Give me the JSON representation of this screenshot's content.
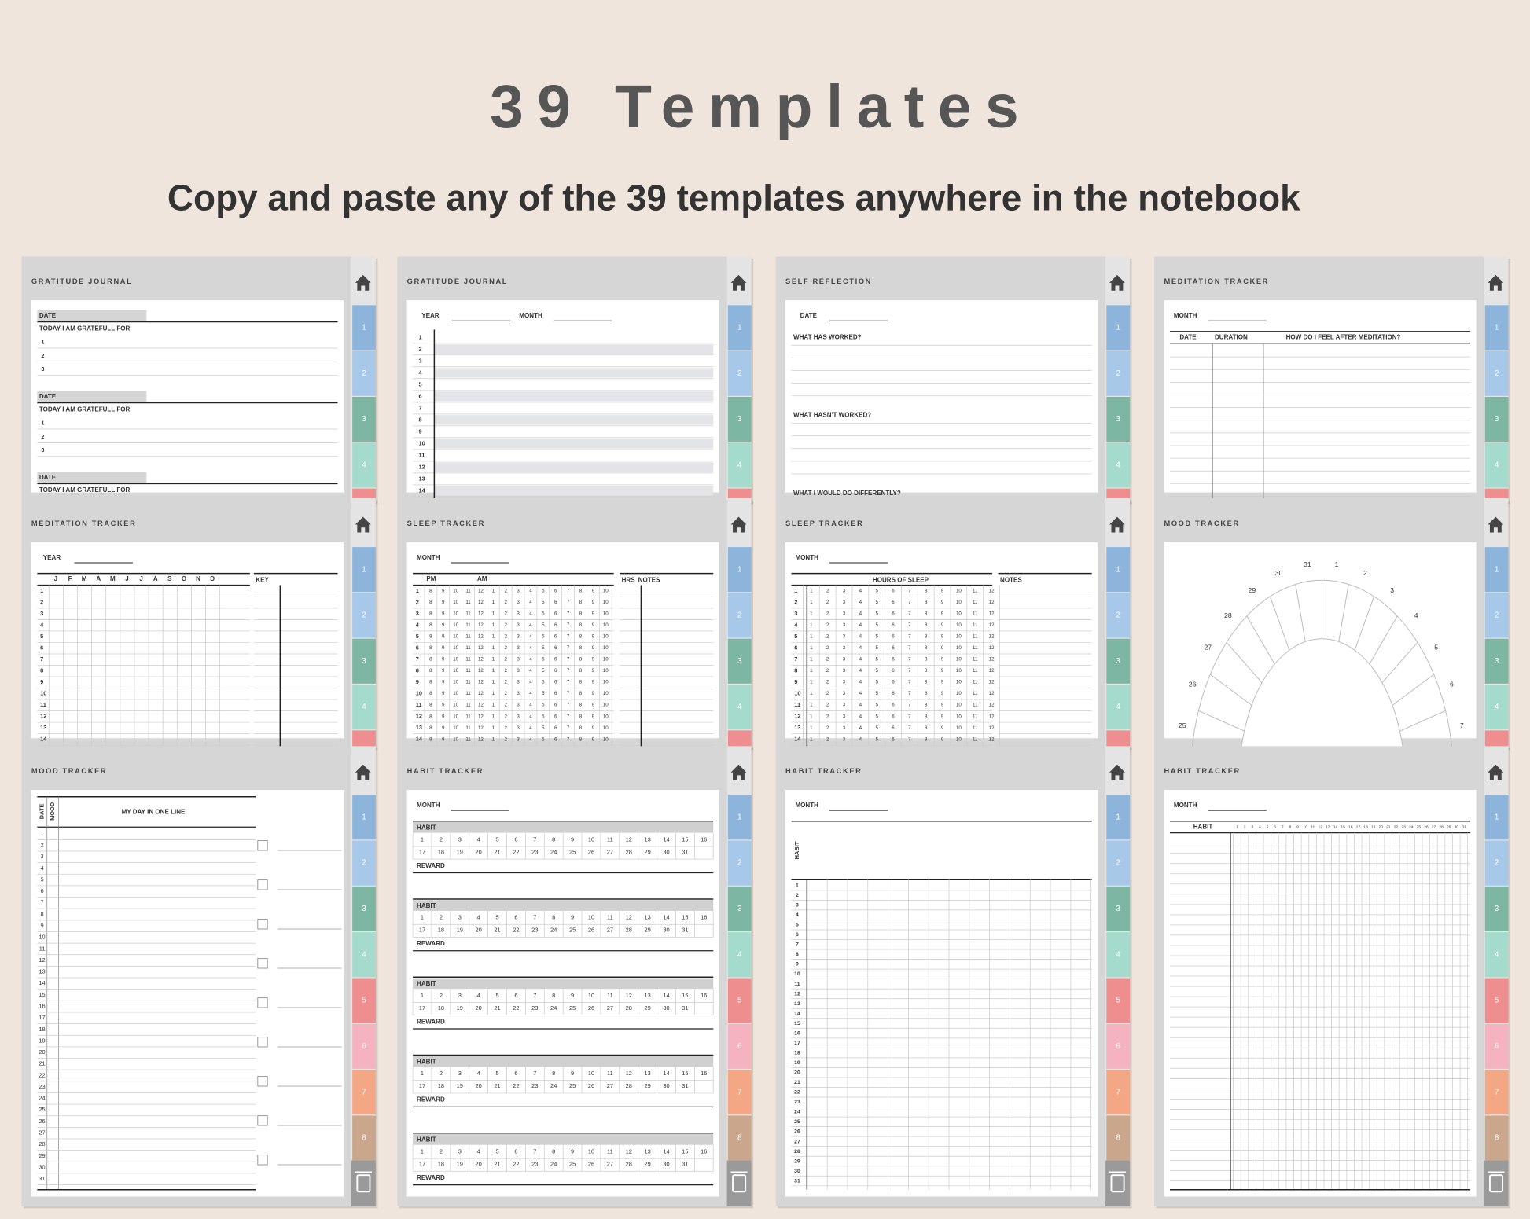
{
  "header": {
    "title": "39 Templates",
    "subtitle": "Copy and paste any of the 39 templates anywhere in the notebook"
  },
  "tabs": [
    "1",
    "2",
    "3",
    "4",
    "5",
    "6",
    "7",
    "8"
  ],
  "days": [
    "1",
    "2",
    "3",
    "4",
    "5",
    "6",
    "7",
    "8",
    "9",
    "10",
    "11",
    "12",
    "13",
    "14",
    "15",
    "16",
    "17",
    "18",
    "19",
    "20",
    "21",
    "22",
    "23",
    "24",
    "25",
    "26",
    "27",
    "28",
    "29",
    "30",
    "31"
  ],
  "templates": [
    {
      "title": "GRATITUDE JOURNAL",
      "date": "DATE",
      "prompt": "TODAY I AM GRATEFULL FOR"
    },
    {
      "title": "GRATITUDE JOURNAL",
      "year": "YEAR",
      "month": "MONTH"
    },
    {
      "title": "SELF REFLECTION",
      "date": "DATE",
      "questions": [
        "WHAT HAS WORKED?",
        "WHAT HASN'T WORKED?",
        "WHAT I WOULD DO DIFFERENTLY?"
      ]
    },
    {
      "title": "MEDITATION TRACKER",
      "month": "MONTH",
      "columns": [
        "DATE",
        "DURATION",
        "HOW DO I FEEL AFTER MEDITATION?"
      ]
    },
    {
      "title": "MEDITATION TRACKER",
      "year": "YEAR",
      "months": [
        "J",
        "F",
        "M",
        "A",
        "M",
        "J",
        "J",
        "A",
        "S",
        "O",
        "N",
        "D"
      ],
      "key": "KEY"
    },
    {
      "title": "SLEEP TRACKER",
      "month": "MONTH",
      "columns": [
        "PM",
        "AM",
        "HRS",
        "NOTES"
      ]
    },
    {
      "title": "SLEEP TRACKER",
      "month": "MONTH",
      "columns": [
        "HOURS OF SLEEP",
        "NOTES"
      ]
    },
    {
      "title": "MOOD TRACKER"
    },
    {
      "title": "MOOD TRACKER",
      "columns": [
        "DATE",
        "MOOD",
        "MY DAY IN ONE LINE"
      ]
    },
    {
      "title": "HABIT TRACKER",
      "month": "MONTH",
      "habit": "HABIT",
      "reward": "REWARD"
    },
    {
      "title": "HABIT TRACKER",
      "month": "MONTH",
      "habit": "HABIT"
    },
    {
      "title": "HABIT TRACKER",
      "month": "MONTH",
      "habit": "HABIT"
    }
  ]
}
